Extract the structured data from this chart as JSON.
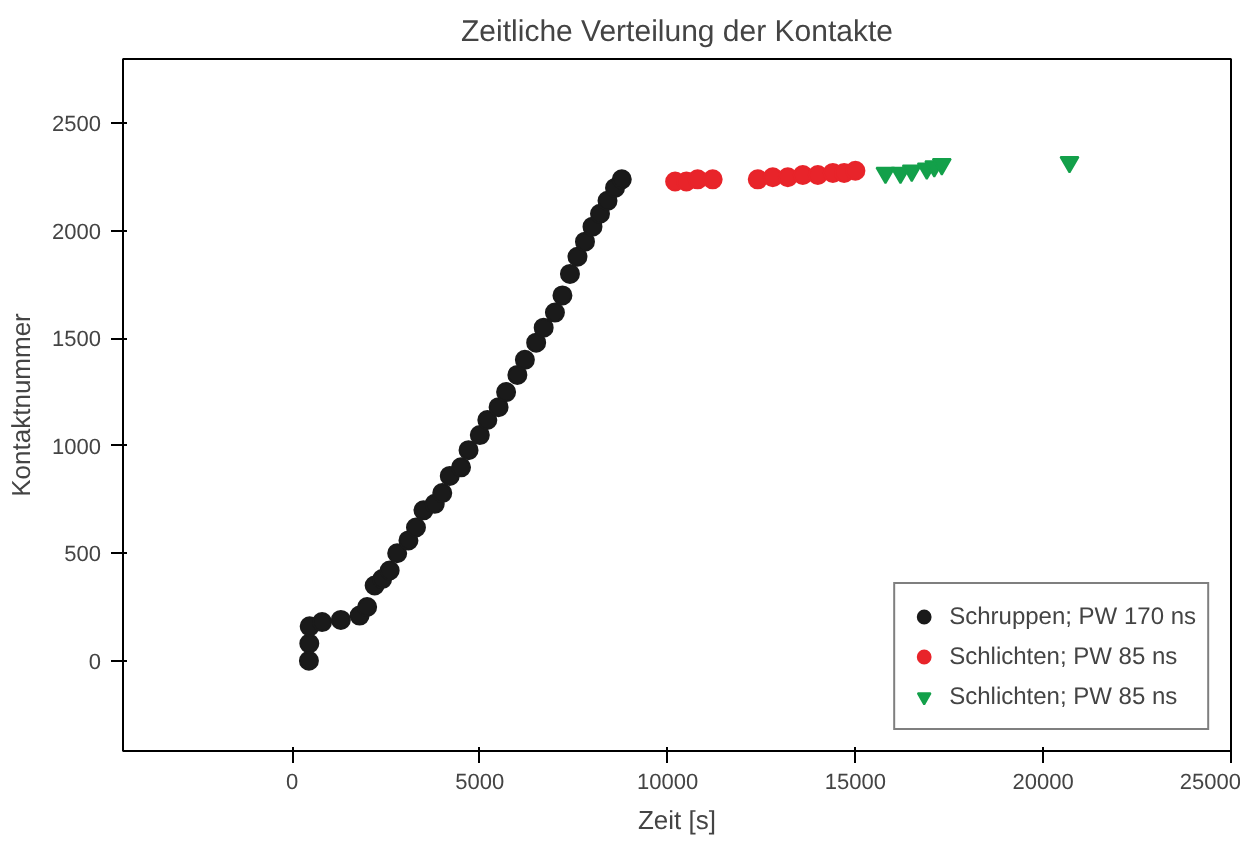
{
  "chart_data": {
    "type": "scatter",
    "title": "Zeitliche Verteilung der Kontakte",
    "xlabel": "Zeit [s]",
    "ylabel": "Kontaktnummer",
    "xlim": [
      -4500,
      25000
    ],
    "ylim": [
      -420,
      2800
    ],
    "xticks": [
      0,
      5000,
      10000,
      15000,
      20000,
      25000
    ],
    "yticks": [
      0,
      500,
      1000,
      1500,
      2000,
      2500
    ],
    "grid": false,
    "legend": "bottom right",
    "series": [
      {
        "name": "Schruppen; PW 170 ns",
        "color": "#1a1a1a",
        "marker": "circle",
        "x": [
          450,
          460,
          470,
          800,
          1300,
          1800,
          2000,
          2200,
          2400,
          2600,
          2800,
          3100,
          3300,
          3500,
          3800,
          4000,
          4200,
          4500,
          4700,
          5000,
          5200,
          5500,
          5700,
          6000,
          6200,
          6500,
          6700,
          7000,
          7200,
          7400,
          7600,
          7800,
          8000,
          8200,
          8400,
          8600,
          8780
        ],
        "values": [
          0,
          80,
          160,
          180,
          190,
          210,
          250,
          350,
          380,
          420,
          500,
          560,
          620,
          700,
          730,
          780,
          860,
          900,
          980,
          1050,
          1120,
          1180,
          1250,
          1330,
          1400,
          1480,
          1550,
          1620,
          1700,
          1800,
          1880,
          1950,
          2020,
          2080,
          2140,
          2200,
          2240
        ]
      },
      {
        "name": "Schlichten; PW 85 ns",
        "color": "#e8242a",
        "marker": "circle",
        "x": [
          10200,
          10500,
          10800,
          11200,
          12400,
          12800,
          13200,
          13600,
          14000,
          14400,
          14700,
          15000
        ],
        "values": [
          2230,
          2230,
          2240,
          2240,
          2240,
          2250,
          2250,
          2260,
          2260,
          2270,
          2270,
          2280
        ]
      },
      {
        "name": "Schlichten; PW 85 ns",
        "color": "#13a04a",
        "marker": "triangle",
        "x": [
          15800,
          16200,
          16500,
          16900,
          17100,
          17300,
          20700
        ],
        "values": [
          2270,
          2270,
          2280,
          2290,
          2300,
          2310,
          2320
        ]
      }
    ]
  }
}
